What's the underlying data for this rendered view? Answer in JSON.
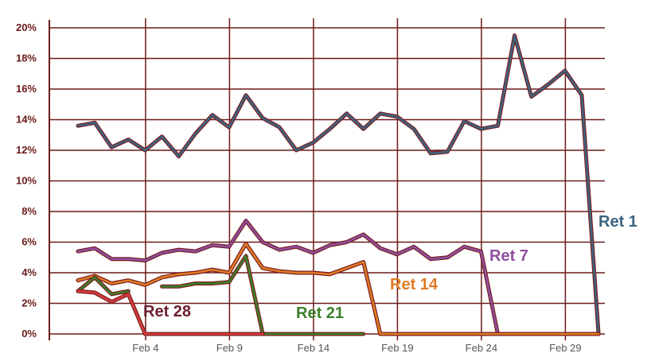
{
  "chart_data": {
    "type": "line",
    "title": "",
    "xlabel": "",
    "ylabel": "",
    "ylim": [
      0,
      20
    ],
    "y_tick_values": [
      0,
      2,
      4,
      6,
      8,
      10,
      12,
      14,
      16,
      18,
      20
    ],
    "y_tick_labels": [
      "0%",
      "2%",
      "4%",
      "6%",
      "8%",
      "10%",
      "12%",
      "14%",
      "16%",
      "18%",
      "20%"
    ],
    "x_tick_labels": [
      "Feb 4",
      "Feb 9",
      "Feb 14",
      "Feb 19",
      "Feb 24",
      "Feb 29"
    ],
    "x_tick_dates": [
      "Feb 4",
      "Feb 9",
      "Feb 14",
      "Feb 19",
      "Feb 24",
      "Feb 29"
    ],
    "x_dates": [
      "Jan 31",
      "Feb 1",
      "Feb 2",
      "Feb 3",
      "Feb 4",
      "Feb 5",
      "Feb 6",
      "Feb 7",
      "Feb 8",
      "Feb 9",
      "Feb 10",
      "Feb 11",
      "Feb 12",
      "Feb 13",
      "Feb 14",
      "Feb 15",
      "Feb 16",
      "Feb 17",
      "Feb 18",
      "Feb 19",
      "Feb 20",
      "Feb 21",
      "Feb 22",
      "Feb 23",
      "Feb 24",
      "Feb 25",
      "Feb 26",
      "Feb 27",
      "Feb 28",
      "Feb 29",
      "Feb 30",
      "Feb 31",
      "Feb 32"
    ],
    "grid": true,
    "legend": "inline labels",
    "series": [
      {
        "name": "Ret 1",
        "color": "#3d6480",
        "outline": "#7a1f1f",
        "values": [
          13.6,
          13.8,
          12.2,
          12.7,
          12.0,
          12.9,
          11.6,
          13.1,
          14.3,
          13.5,
          15.6,
          14.1,
          13.5,
          12.0,
          12.5,
          13.4,
          14.4,
          13.4,
          14.4,
          14.2,
          13.4,
          11.8,
          11.9,
          13.9,
          13.4,
          13.6,
          19.5,
          15.5,
          16.3,
          17.2,
          15.6,
          0,
          null
        ]
      },
      {
        "name": "Ret 7",
        "color": "#8e4fa0",
        "outline": "#7a1f1f",
        "values": [
          5.4,
          5.6,
          4.9,
          4.9,
          4.8,
          5.3,
          5.5,
          5.4,
          5.8,
          5.7,
          7.4,
          6.0,
          5.5,
          5.7,
          5.3,
          5.8,
          6.0,
          6.5,
          5.6,
          5.2,
          5.7,
          4.9,
          5.0,
          5.7,
          5.4,
          0,
          0,
          0,
          0,
          0,
          0,
          0,
          null
        ]
      },
      {
        "name": "Ret 14",
        "color": "#e07b26",
        "outline": "#7a1f1f",
        "values": [
          3.5,
          3.8,
          3.3,
          3.5,
          3.2,
          3.7,
          3.9,
          4.0,
          4.2,
          4.0,
          5.9,
          4.3,
          4.1,
          4.0,
          4.0,
          3.9,
          4.3,
          4.7,
          0,
          0,
          0,
          0,
          0,
          0,
          0,
          0,
          0,
          0,
          0,
          0,
          0,
          0,
          null
        ]
      },
      {
        "name": "Ret 21",
        "color": "#3d7f2a",
        "outline": "#7a1f1f",
        "values": [
          2.8,
          3.7,
          2.6,
          2.8,
          null,
          3.1,
          3.1,
          3.3,
          3.3,
          3.4,
          5.1,
          0,
          0,
          0,
          0,
          0,
          0,
          0,
          null,
          null,
          null,
          null,
          null,
          null,
          null,
          null,
          null,
          null,
          null,
          null,
          null,
          null,
          null
        ]
      },
      {
        "name": "Ret 28",
        "color": "#d63a3a",
        "outline": "#7a1f1f",
        "values": [
          2.8,
          2.7,
          2.1,
          2.6,
          0,
          0,
          0,
          0,
          0,
          0,
          0,
          0,
          null,
          null,
          null,
          null,
          null,
          null,
          null,
          null,
          null,
          null,
          null,
          null,
          null,
          null,
          null,
          null,
          null,
          null,
          null,
          null,
          null
        ]
      }
    ],
    "annotations": [
      {
        "text": "Ret 1",
        "color": "#3d6480"
      },
      {
        "text": "Ret 7",
        "color": "#8e4fa0"
      },
      {
        "text": "Ret 14",
        "color": "#e07b26"
      },
      {
        "text": "Ret 21",
        "color": "#3d7f2a"
      },
      {
        "text": "Ret 28",
        "color": "#6b1f2f"
      }
    ],
    "grid_color": "#6b1a1a"
  }
}
